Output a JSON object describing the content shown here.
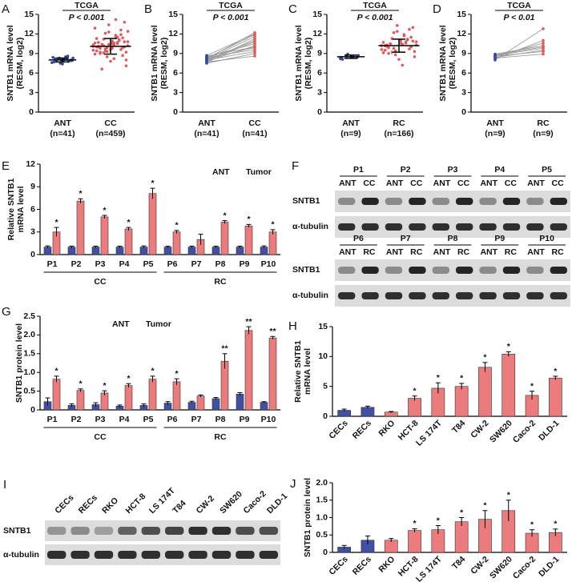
{
  "chart_data": [
    {
      "type": "scatter",
      "panel_label": "A",
      "title": "TCGA",
      "annotation": "P < 0.001",
      "y_label": [
        "SNTB1 mRNA level",
        "(RESM, log2)"
      ],
      "categories": [
        "ANT",
        "CC"
      ],
      "category_notes": [
        "(n=41)",
        "(n=459)"
      ],
      "ylim": [
        0,
        15
      ],
      "yticks": [
        0,
        3,
        6,
        9,
        12,
        15
      ],
      "groups": [
        {
          "color": "#2f4b9a",
          "values": [
            7.6,
            7.8,
            8.0,
            8.2,
            8.4,
            7.9,
            8.1,
            8.3,
            7.7,
            8.0,
            8.5,
            7.5,
            8.2,
            7.9,
            8.1,
            8.0,
            7.8,
            8.3,
            8.6,
            7.4
          ],
          "mean": 8.0,
          "sd": 0.3
        },
        {
          "color": "#e05a5a",
          "values": [
            10.1,
            9.6,
            10.5,
            11.2,
            8.9,
            9.9,
            10.3,
            12.1,
            9.4,
            10.8,
            11.6,
            8.5,
            10.0,
            9.2,
            10.7,
            13.4,
            9.8,
            10.2,
            11.0,
            7.8,
            10.4,
            9.5,
            12.6,
            10.9,
            9.1,
            10.6,
            11.4,
            8.2,
            9.7,
            10.0,
            13.8,
            11.8,
            9.3,
            10.1,
            7.1,
            10.5,
            12.3,
            9.0,
            10.8,
            11.1,
            9.6,
            6.6,
            10.3,
            11.9,
            9.8,
            10.2,
            12.9,
            8.7,
            10.6,
            9.4,
            11.3,
            10.0,
            14.2,
            9.9,
            10.7,
            8.0,
            11.5,
            10.4,
            9.2,
            12.4
          ],
          "mean": 10.1,
          "sd": 1.2
        }
      ]
    },
    {
      "type": "paired",
      "panel_label": "B",
      "title": "TCGA",
      "annotation": "P < 0.001",
      "y_label": [
        "SNTB1 mRNA level",
        "(RESM, log2)"
      ],
      "categories": [
        "ANT",
        "CC"
      ],
      "category_notes": [
        "(n=41)",
        "(n=41)"
      ],
      "ylim": [
        0,
        15
      ],
      "yticks": [
        0,
        3,
        6,
        9,
        12,
        15
      ],
      "colors": [
        "#2f4b9a",
        "#e05a5a"
      ],
      "line_color": "#9a9a9a",
      "pairs": [
        [
          7.5,
          9.0
        ],
        [
          7.8,
          10.2
        ],
        [
          8.0,
          11.0
        ],
        [
          8.2,
          12.2
        ],
        [
          8.4,
          9.6
        ],
        [
          7.9,
          10.8
        ],
        [
          8.1,
          11.6
        ],
        [
          8.6,
          10.0
        ],
        [
          7.7,
          8.6
        ],
        [
          8.3,
          11.9
        ],
        [
          8.0,
          9.3
        ],
        [
          8.5,
          10.5
        ],
        [
          7.6,
          11.3
        ],
        [
          8.7,
          12.0
        ],
        [
          8.2,
          9.9
        ]
      ]
    },
    {
      "type": "scatter",
      "panel_label": "C",
      "title": "TCGA",
      "annotation": "P < 0.001",
      "y_label": [
        "SNTB1 mRNA level",
        "(RESM, log2)"
      ],
      "categories": [
        "ANT",
        "RC"
      ],
      "category_notes": [
        "(n=9)",
        "(n=166)"
      ],
      "ylim": [
        0,
        15
      ],
      "yticks": [
        0,
        3,
        6,
        9,
        12,
        15
      ],
      "groups": [
        {
          "color": "#2f4b9a",
          "values": [
            8.2,
            8.4,
            8.5,
            8.6,
            8.3,
            8.7,
            8.5,
            8.9,
            8.1
          ],
          "mean": 8.5,
          "sd": 0.25
        },
        {
          "color": "#e05a5a",
          "values": [
            10.2,
            9.7,
            10.6,
            11.3,
            9.1,
            10.0,
            10.4,
            12.2,
            9.5,
            10.9,
            11.7,
            8.8,
            10.1,
            9.3,
            10.8,
            13.3,
            9.9,
            10.3,
            11.1,
            8.1,
            10.5,
            9.6,
            12.7,
            11.0,
            9.2,
            10.7,
            11.5,
            7.2,
            9.8,
            10.2,
            13.0,
            11.9,
            9.4,
            10.3,
            8.5,
            10.6,
            12.4,
            9.0,
            10.8,
            11.2
          ],
          "mean": 10.2,
          "sd": 1.0
        }
      ]
    },
    {
      "type": "paired",
      "panel_label": "D",
      "title": "TCGA",
      "annotation": "P < 0.01",
      "y_label": [
        "SNTB1 mRNA level",
        "(RESM, log2)"
      ],
      "categories": [
        "ANT",
        "RC"
      ],
      "category_notes": [
        "(n=9)",
        "(n=9)"
      ],
      "ylim": [
        0,
        15
      ],
      "yticks": [
        0,
        3,
        6,
        9,
        12,
        15
      ],
      "colors": [
        "#2f4b9a",
        "#e05a5a"
      ],
      "line_color": "#9a9a9a",
      "pairs": [
        [
          8.0,
          12.8
        ],
        [
          8.5,
          10.6
        ],
        [
          8.7,
          9.8
        ],
        [
          8.3,
          8.9
        ],
        [
          8.9,
          10.2
        ],
        [
          8.6,
          9.3
        ],
        [
          8.2,
          11.0
        ],
        [
          8.8,
          10.0
        ],
        [
          8.4,
          9.5
        ]
      ]
    },
    {
      "type": "grouped_bar",
      "panel_label": "E",
      "y_label": [
        "Relative SNTB1",
        "mRNA level"
      ],
      "legend": "upper right",
      "categories": [
        "P1",
        "P2",
        "P3",
        "P4",
        "P5",
        "P6",
        "P7",
        "P8",
        "P9",
        "P10"
      ],
      "group_labels": [
        "CC",
        "RC"
      ],
      "ylim": [
        0,
        12
      ],
      "yticks": [
        0,
        3,
        6,
        9,
        12
      ],
      "series": [
        {
          "name": "ANT",
          "color": "#4150a4",
          "values": [
            1.0,
            1.0,
            1.0,
            1.0,
            1.0,
            1.0,
            1.0,
            1.0,
            1.0,
            1.0
          ],
          "errors": [
            0.15,
            0.12,
            0.12,
            0.12,
            0.15,
            0.1,
            0.12,
            0.12,
            0.12,
            0.15
          ]
        },
        {
          "name": "Tumor",
          "color": "#ec7b7d",
          "values": [
            3.0,
            7.1,
            5.0,
            3.4,
            8.1,
            3.0,
            2.0,
            4.3,
            3.8,
            3.0
          ],
          "errors": [
            0.6,
            0.3,
            0.2,
            0.2,
            0.7,
            0.2,
            0.7,
            0.2,
            0.2,
            0.3
          ]
        }
      ],
      "significance": [
        "*",
        "*",
        "*",
        "*",
        "*",
        "*",
        null,
        "*",
        "*",
        "*"
      ]
    },
    {
      "type": "grouped_bar",
      "panel_label": "G",
      "y_label": [
        "SNTB1 protein level"
      ],
      "legend": "upper center",
      "categories": [
        "P1",
        "P2",
        "P3",
        "P4",
        "P5",
        "P6",
        "P7",
        "P8",
        "P9",
        "P10"
      ],
      "group_labels": [
        "CC",
        "RC"
      ],
      "ylim": [
        0,
        2.5
      ],
      "yticks": [
        0,
        0.5,
        {
          "value": 1,
          "label": "1.0"
        },
        1.5,
        {
          "value": 2,
          "label": "2.0"
        },
        2.5
      ],
      "series": [
        {
          "name": "ANT",
          "color": "#4150a4",
          "values": [
            0.22,
            0.12,
            0.14,
            0.1,
            0.12,
            0.18,
            0.2,
            0.3,
            0.42,
            0.2
          ],
          "errors": [
            0.1,
            0.04,
            0.05,
            0.03,
            0.04,
            0.04,
            0.03,
            0.03,
            0.04,
            0.02
          ]
        },
        {
          "name": "Tumor",
          "color": "#ec7b7d",
          "values": [
            0.82,
            0.52,
            0.45,
            0.65,
            0.82,
            0.75,
            0.37,
            1.3,
            2.12,
            1.92
          ],
          "errors": [
            0.08,
            0.04,
            0.06,
            0.05,
            0.08,
            0.08,
            0.03,
            0.2,
            0.1,
            0.04
          ]
        }
      ],
      "significance": [
        "*",
        "*",
        "*",
        "*",
        "*",
        "*",
        null,
        "**",
        "**",
        "**"
      ]
    },
    {
      "type": "bar",
      "panel_label": "H",
      "y_label": [
        "Relative SNTB1",
        "mRNA level"
      ],
      "categories": [
        "CECs",
        "RECs",
        "RKO",
        "HCT-8",
        "LS 174T",
        "T84",
        "CW-2",
        "SW620",
        "Caco-2",
        "DLD-1"
      ],
      "ylim": [
        0,
        15
      ],
      "yticks": [
        0,
        5,
        10,
        15
      ],
      "colors": [
        "#4150a4",
        "#4150a4",
        "#ec7b7d",
        "#ec7b7d",
        "#ec7b7d",
        "#ec7b7d",
        "#ec7b7d",
        "#ec7b7d",
        "#ec7b7d",
        "#ec7b7d"
      ],
      "values": [
        1.0,
        1.5,
        0.7,
        3.0,
        4.7,
        5.0,
        8.2,
        10.4,
        3.5,
        6.4
      ],
      "errors": [
        0.2,
        0.2,
        0.1,
        0.4,
        0.9,
        0.5,
        0.8,
        0.4,
        0.7,
        0.3
      ],
      "significance": [
        null,
        null,
        null,
        "*",
        "*",
        "*",
        "*",
        "*",
        "*",
        "*"
      ]
    },
    {
      "type": "bar",
      "panel_label": "J",
      "y_label": [
        "SNTB1 protein level"
      ],
      "categories": [
        "CECs",
        "RECs",
        "RKO",
        "HCT-8",
        "LS 174T",
        "T84",
        "CW-2",
        "SW620",
        "Caco-2",
        "DLD-1"
      ],
      "ylim": [
        0,
        2
      ],
      "yticks": [
        0,
        0.5,
        {
          "value": 1,
          "label": "1.0"
        },
        1.5,
        {
          "value": 2,
          "label": "2.0"
        }
      ],
      "colors": [
        "#4150a4",
        "#4150a4",
        "#ec7b7d",
        "#ec7b7d",
        "#ec7b7d",
        "#ec7b7d",
        "#ec7b7d",
        "#ec7b7d",
        "#ec7b7d",
        "#ec7b7d"
      ],
      "values": [
        0.15,
        0.35,
        0.35,
        0.63,
        0.65,
        0.88,
        0.95,
        1.2,
        0.55,
        0.57
      ],
      "errors": [
        0.05,
        0.12,
        0.05,
        0.05,
        0.12,
        0.12,
        0.25,
        0.3,
        0.1,
        0.1
      ],
      "significance": [
        null,
        null,
        null,
        "*",
        "*",
        "*",
        "*",
        "*",
        "*",
        "*"
      ]
    }
  ],
  "blot_f": {
    "panel_label": "F",
    "blocks": [
      {
        "samples": [
          "P1",
          "P2",
          "P3",
          "P4",
          "P5"
        ],
        "lanes": [
          "ANT",
          "CC"
        ],
        "rows": [
          "SNTB1",
          "α-tubulin"
        ]
      },
      {
        "samples": [
          "P6",
          "P7",
          "P8",
          "P9",
          "P10"
        ],
        "lanes": [
          "ANT",
          "RC"
        ],
        "rows": [
          "SNTB1",
          "α-tubulin"
        ]
      }
    ]
  },
  "blot_i": {
    "panel_label": "I",
    "lanes": [
      "CECs",
      "RECs",
      "RKO",
      "HCT-8",
      "LS 174T",
      "T84",
      "CW-2",
      "SW620",
      "Caco-2",
      "DLD-1"
    ],
    "rows": [
      "SNTB1",
      "α-tubulin"
    ]
  }
}
